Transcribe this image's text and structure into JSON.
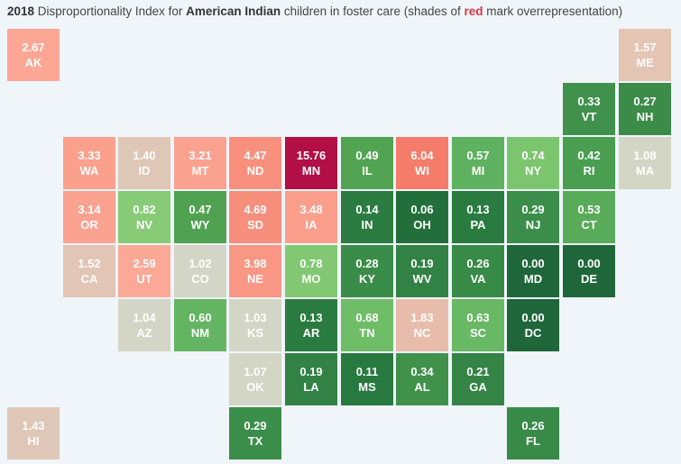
{
  "title": {
    "year": "2018",
    "pre": " Disproportionality Index for ",
    "group": "American Indian",
    "mid": " children in foster care (shades of ",
    "red": "red",
    "post": " mark overrepresentation)"
  },
  "colors": {
    "background": "#f0f5fa",
    "strong_over": "#b01142",
    "over": "#f98e7c",
    "mild_over": "#e0c4b4",
    "neutral": "#d4d6c6",
    "light_green": "#8cd07c",
    "green": "#4c9a4c",
    "dark_green": "#23693b"
  },
  "states": [
    {
      "abbr": "AK",
      "value": "2.67",
      "col": 0,
      "row": 0,
      "color": "#fca795"
    },
    {
      "abbr": "ME",
      "value": "1.57",
      "col": 11,
      "row": 0,
      "color": "#e4c4b3"
    },
    {
      "abbr": "VT",
      "value": "0.33",
      "col": 10,
      "row": 1,
      "color": "#3f914b"
    },
    {
      "abbr": "NH",
      "value": "0.27",
      "col": 11,
      "row": 1,
      "color": "#3a8c48"
    },
    {
      "abbr": "WA",
      "value": "3.33",
      "col": 1,
      "row": 2,
      "color": "#fba08d"
    },
    {
      "abbr": "ID",
      "value": "1.40",
      "col": 2,
      "row": 2,
      "color": "#dfc7b7"
    },
    {
      "abbr": "MT",
      "value": "3.21",
      "col": 3,
      "row": 2,
      "color": "#fba18f"
    },
    {
      "abbr": "ND",
      "value": "4.47",
      "col": 4,
      "row": 2,
      "color": "#f9907e"
    },
    {
      "abbr": "MN",
      "value": "15.76",
      "col": 5,
      "row": 2,
      "color": "#b10f45"
    },
    {
      "abbr": "IL",
      "value": "0.49",
      "col": 6,
      "row": 2,
      "color": "#52a453"
    },
    {
      "abbr": "WI",
      "value": "6.04",
      "col": 7,
      "row": 2,
      "color": "#f57c6a"
    },
    {
      "abbr": "MI",
      "value": "0.57",
      "col": 8,
      "row": 2,
      "color": "#5eb15f"
    },
    {
      "abbr": "NY",
      "value": "0.74",
      "col": 9,
      "row": 2,
      "color": "#7cc56f"
    },
    {
      "abbr": "RI",
      "value": "0.42",
      "col": 10,
      "row": 2,
      "color": "#4a9e4f"
    },
    {
      "abbr": "MA",
      "value": "1.08",
      "col": 11,
      "row": 2,
      "color": "#d3d6c5"
    },
    {
      "abbr": "OR",
      "value": "3.14",
      "col": 1,
      "row": 3,
      "color": "#fba290"
    },
    {
      "abbr": "NV",
      "value": "0.82",
      "col": 2,
      "row": 3,
      "color": "#88cb77"
    },
    {
      "abbr": "WY",
      "value": "0.47",
      "col": 3,
      "row": 3,
      "color": "#50a251"
    },
    {
      "abbr": "SD",
      "value": "4.69",
      "col": 4,
      "row": 3,
      "color": "#f88e7c"
    },
    {
      "abbr": "IA",
      "value": "3.48",
      "col": 5,
      "row": 3,
      "color": "#fb9e8b"
    },
    {
      "abbr": "IN",
      "value": "0.14",
      "col": 6,
      "row": 3,
      "color": "#2b7c40"
    },
    {
      "abbr": "OH",
      "value": "0.06",
      "col": 7,
      "row": 3,
      "color": "#236f3b"
    },
    {
      "abbr": "PA",
      "value": "0.13",
      "col": 8,
      "row": 3,
      "color": "#2a7b40"
    },
    {
      "abbr": "NJ",
      "value": "0.29",
      "col": 9,
      "row": 3,
      "color": "#3b8e49"
    },
    {
      "abbr": "CT",
      "value": "0.53",
      "col": 10,
      "row": 3,
      "color": "#58ab58"
    },
    {
      "abbr": "CA",
      "value": "1.52",
      "col": 1,
      "row": 4,
      "color": "#e2c5b4"
    },
    {
      "abbr": "UT",
      "value": "2.59",
      "col": 2,
      "row": 4,
      "color": "#fca896"
    },
    {
      "abbr": "CO",
      "value": "1.02",
      "col": 3,
      "row": 4,
      "color": "#d3d6c6"
    },
    {
      "abbr": "NE",
      "value": "3.98",
      "col": 4,
      "row": 4,
      "color": "#fa9684"
    },
    {
      "abbr": "MO",
      "value": "0.78",
      "col": 5,
      "row": 4,
      "color": "#82c873"
    },
    {
      "abbr": "KY",
      "value": "0.28",
      "col": 6,
      "row": 4,
      "color": "#3a8d48"
    },
    {
      "abbr": "WV",
      "value": "0.19",
      "col": 7,
      "row": 4,
      "color": "#318244"
    },
    {
      "abbr": "VA",
      "value": "0.26",
      "col": 8,
      "row": 4,
      "color": "#388a47"
    },
    {
      "abbr": "MD",
      "value": "0.00",
      "col": 9,
      "row": 4,
      "color": "#1f673a"
    },
    {
      "abbr": "DE",
      "value": "0.00",
      "col": 10,
      "row": 4,
      "color": "#1f673a"
    },
    {
      "abbr": "AZ",
      "value": "1.04",
      "col": 2,
      "row": 5,
      "color": "#d3d6c6"
    },
    {
      "abbr": "NM",
      "value": "0.60",
      "col": 3,
      "row": 5,
      "color": "#63b562"
    },
    {
      "abbr": "KS",
      "value": "1.03",
      "col": 4,
      "row": 5,
      "color": "#d3d6c6"
    },
    {
      "abbr": "AR",
      "value": "0.13",
      "col": 5,
      "row": 5,
      "color": "#2a7b40"
    },
    {
      "abbr": "TN",
      "value": "0.68",
      "col": 6,
      "row": 5,
      "color": "#70bd68"
    },
    {
      "abbr": "NC",
      "value": "1.83",
      "col": 7,
      "row": 5,
      "color": "#e8bcab"
    },
    {
      "abbr": "SC",
      "value": "0.63",
      "col": 8,
      "row": 5,
      "color": "#68b864"
    },
    {
      "abbr": "DC",
      "value": "0.00",
      "col": 9,
      "row": 5,
      "color": "#1f673a"
    },
    {
      "abbr": "OK",
      "value": "1.07",
      "col": 4,
      "row": 6,
      "color": "#d3d6c5"
    },
    {
      "abbr": "LA",
      "value": "0.19",
      "col": 5,
      "row": 6,
      "color": "#318244"
    },
    {
      "abbr": "MS",
      "value": "0.11",
      "col": 6,
      "row": 6,
      "color": "#28793f"
    },
    {
      "abbr": "AL",
      "value": "0.34",
      "col": 7,
      "row": 6,
      "color": "#40924b"
    },
    {
      "abbr": "GA",
      "value": "0.21",
      "col": 8,
      "row": 6,
      "color": "#338445"
    },
    {
      "abbr": "HI",
      "value": "1.43",
      "col": 0,
      "row": 7,
      "color": "#dfc7b7"
    },
    {
      "abbr": "TX",
      "value": "0.29",
      "col": 4,
      "row": 7,
      "color": "#3b8e49"
    },
    {
      "abbr": "FL",
      "value": "0.26",
      "col": 9,
      "row": 7,
      "color": "#388a47"
    }
  ]
}
